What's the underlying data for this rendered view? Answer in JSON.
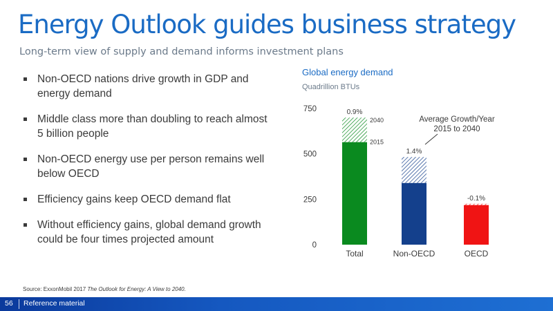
{
  "slide": {
    "title": "Energy Outlook guides business strategy",
    "subtitle": "Long-term view of supply and demand informs investment plans",
    "bullets": [
      "Non-OECD nations drive growth in GDP and energy demand",
      "Middle class more than doubling to reach almost 5 billion people",
      "Non-OECD energy use per person remains well below OECD",
      "Efficiency gains keep OECD demand flat",
      "Without efficiency gains, global demand growth could be four times projected amount"
    ],
    "source_prefix": "Source: ExxonMobil 2017 ",
    "source_italic": "The Outlook for Energy: A View to 2040.",
    "page_number": "56",
    "footer_label": "Reference material"
  },
  "chart_data": {
    "type": "bar",
    "title": "Global energy demand",
    "subtitle": "Quadrillion BTUs",
    "categories": [
      "Total",
      "Non-OECD",
      "OECD"
    ],
    "series": [
      {
        "name": "2015",
        "values": [
          565,
          340,
          225
        ]
      },
      {
        "name": "2040",
        "values": [
          700,
          483,
          218
        ]
      }
    ],
    "growth_labels": [
      "0.9%",
      "1.4%",
      "-0.1%"
    ],
    "annotation": "Average Growth/Year 2015 to 2040",
    "annotation_lines": [
      "Average Growth/Year",
      "2015 to 2040"
    ],
    "year_labels": [
      "2040",
      "2015"
    ],
    "ylim": [
      0,
      750
    ],
    "yticks": [
      "0",
      "250",
      "500",
      "750"
    ],
    "grid": false,
    "colors": {
      "Total": "#0a8a1f",
      "Non-OECD": "#14408c",
      "OECD": "#f01414",
      "title": "#1a6bc4"
    }
  }
}
